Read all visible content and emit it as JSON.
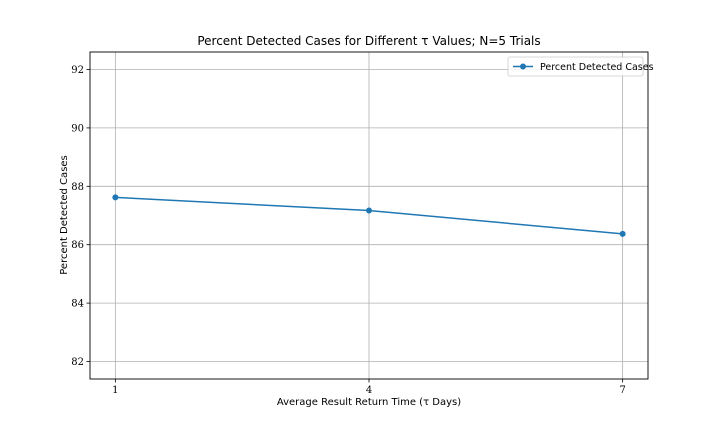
{
  "chart_data": {
    "type": "line",
    "title": "Percent Detected Cases for Different τ Values; N=5 Trials",
    "xlabel": "Average Result Return Time (τ Days)",
    "ylabel": "Percent Detected Cases",
    "x": [
      1,
      4,
      7
    ],
    "xticks": [
      "1",
      "4",
      "7"
    ],
    "xlim": [
      0.7,
      7.3
    ],
    "yticks": [
      82,
      84,
      86,
      88,
      90,
      92
    ],
    "ylim": [
      81.4,
      92.6
    ],
    "grid": true,
    "legend_position": "top-right",
    "series": [
      {
        "name": "Percent Detected Cases",
        "values": [
          87.62,
          87.17,
          86.37
        ],
        "color": "#1f77b4",
        "marker": "circle"
      }
    ]
  }
}
